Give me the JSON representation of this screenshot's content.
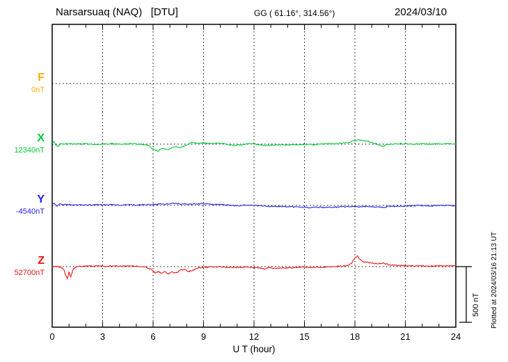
{
  "header": {
    "station": "Narsarsuaq (NAQ)   [DTU]",
    "coords": "GG ( 61.16°, 314.56°)",
    "date": "2024/03/10"
  },
  "footer": {
    "xlabel": "U T (hour)"
  },
  "side": {
    "scale_label": "500 nT",
    "plotted_note": "Plotted at 2024/03/16 21:13 UT"
  },
  "chart_data": {
    "type": "line",
    "title": "Narsarsuaq (NAQ) [DTU] magnetogram, 2024/03/10",
    "xlabel": "U T (hour)",
    "x_range": [
      0,
      24
    ],
    "x_ticks": [
      0,
      3,
      6,
      9,
      12,
      15,
      18,
      21,
      24
    ],
    "grid": "dotted vertical lines every 3 h; dotted horizontal baseline per component",
    "legend_position": "left margin, one label per trace baseline",
    "scale_bar": {
      "label": "500 nT",
      "nT": 500
    },
    "series": [
      {
        "name": "F",
        "color": "#ffaa00",
        "baseline_label": "0nT",
        "baseline_value_nT": 0,
        "points": []
      },
      {
        "name": "X",
        "color": "#00cc33",
        "baseline_label": "12340nT",
        "baseline_value_nT": 12340,
        "points": [
          [
            0,
            6
          ],
          [
            0.1,
            25
          ],
          [
            0.2,
            -6
          ],
          [
            0.35,
            -25
          ],
          [
            0.5,
            6
          ],
          [
            0.7,
            0
          ],
          [
            1,
            3
          ],
          [
            1.5,
            0
          ],
          [
            2,
            3
          ],
          [
            2.5,
            -3
          ],
          [
            3,
            0
          ],
          [
            3.5,
            3
          ],
          [
            4,
            0
          ],
          [
            4.5,
            3
          ],
          [
            5,
            0
          ],
          [
            5.4,
            -3
          ],
          [
            5.7,
            -12
          ],
          [
            6,
            -44
          ],
          [
            6.15,
            -56
          ],
          [
            6.3,
            -62
          ],
          [
            6.5,
            -37
          ],
          [
            6.7,
            -44
          ],
          [
            6.9,
            -50
          ],
          [
            7.1,
            -31
          ],
          [
            7.35,
            -22
          ],
          [
            7.6,
            -31
          ],
          [
            7.8,
            -19
          ],
          [
            8,
            -6
          ],
          [
            8.3,
            12
          ],
          [
            8.6,
            9
          ],
          [
            9,
            9
          ],
          [
            9.4,
            6
          ],
          [
            9.8,
            9
          ],
          [
            10.2,
            3
          ],
          [
            10.5,
            -9
          ],
          [
            10.8,
            -12
          ],
          [
            11.1,
            -6
          ],
          [
            11.5,
            0
          ],
          [
            12,
            3
          ],
          [
            12.3,
            -6
          ],
          [
            12.6,
            -12
          ],
          [
            13,
            -9
          ],
          [
            13.5,
            -6
          ],
          [
            14,
            -8
          ],
          [
            14.5,
            -5
          ],
          [
            15,
            -3
          ],
          [
            15.5,
            -5
          ],
          [
            16,
            0
          ],
          [
            16.5,
            3
          ],
          [
            17,
            5
          ],
          [
            17.5,
            12
          ],
          [
            17.8,
            22
          ],
          [
            18,
            31
          ],
          [
            18.2,
            37
          ],
          [
            18.5,
            31
          ],
          [
            18.8,
            25
          ],
          [
            19,
            15
          ],
          [
            19.3,
            0
          ],
          [
            19.6,
            -19
          ],
          [
            19.9,
            -8
          ],
          [
            20.2,
            0
          ],
          [
            20.6,
            3
          ],
          [
            21,
            2
          ],
          [
            21.5,
            0
          ],
          [
            22,
            3
          ],
          [
            22.5,
            1
          ],
          [
            23,
            3
          ],
          [
            23.5,
            2
          ],
          [
            24,
            3
          ]
        ]
      },
      {
        "name": "Y",
        "color": "#2222ee",
        "baseline_label": "-4540nT",
        "baseline_value_nT": -4540,
        "points": [
          [
            0,
            25
          ],
          [
            0.15,
            12
          ],
          [
            0.3,
            -9
          ],
          [
            0.45,
            19
          ],
          [
            0.6,
            3
          ],
          [
            0.8,
            9
          ],
          [
            1,
            6
          ],
          [
            1.3,
            3
          ],
          [
            1.6,
            6
          ],
          [
            2,
            4
          ],
          [
            2.5,
            6
          ],
          [
            3,
            4
          ],
          [
            3.5,
            6
          ],
          [
            4,
            4
          ],
          [
            4.5,
            5
          ],
          [
            5,
            4
          ],
          [
            5.5,
            6
          ],
          [
            6,
            8
          ],
          [
            6.4,
            12
          ],
          [
            6.8,
            10
          ],
          [
            7.1,
            19
          ],
          [
            7.4,
            14
          ],
          [
            7.7,
            12
          ],
          [
            8,
            10
          ],
          [
            8.4,
            12
          ],
          [
            8.8,
            14
          ],
          [
            9.2,
            12
          ],
          [
            9.6,
            8
          ],
          [
            10,
            6
          ],
          [
            10.5,
            4
          ],
          [
            11,
            -2
          ],
          [
            11.4,
            2
          ],
          [
            11.8,
            0
          ],
          [
            12.2,
            -2
          ],
          [
            12.6,
            -4
          ],
          [
            13,
            -8
          ],
          [
            13.5,
            -10
          ],
          [
            14,
            -12
          ],
          [
            14.5,
            -15
          ],
          [
            15,
            -17
          ],
          [
            15.5,
            -19
          ],
          [
            16,
            -17
          ],
          [
            16.5,
            -19
          ],
          [
            17,
            -14
          ],
          [
            17.4,
            -12
          ],
          [
            17.8,
            -10
          ],
          [
            18.2,
            -12
          ],
          [
            18.6,
            -10
          ],
          [
            19,
            -12
          ],
          [
            19.4,
            -17
          ],
          [
            19.7,
            -19
          ],
          [
            20,
            -10
          ],
          [
            20.4,
            -8
          ],
          [
            20.8,
            -6
          ],
          [
            21.2,
            -4
          ],
          [
            21.6,
            -3
          ],
          [
            22,
            -2
          ],
          [
            22.5,
            -3
          ],
          [
            23,
            -1
          ],
          [
            23.5,
            -2
          ],
          [
            24,
            0
          ]
        ]
      },
      {
        "name": "Z",
        "color": "#ee1111",
        "baseline_label": "52700nT",
        "baseline_value_nT": 52700,
        "points": [
          [
            0,
            0
          ],
          [
            0.3,
            2
          ],
          [
            0.5,
            -2
          ],
          [
            0.7,
            -30
          ],
          [
            0.8,
            -75
          ],
          [
            0.9,
            -106
          ],
          [
            1,
            -50
          ],
          [
            1.1,
            -87
          ],
          [
            1.25,
            -25
          ],
          [
            1.4,
            -6
          ],
          [
            1.6,
            2
          ],
          [
            2,
            5
          ],
          [
            2.5,
            6
          ],
          [
            3,
            5
          ],
          [
            3.5,
            6
          ],
          [
            4,
            4
          ],
          [
            4.5,
            6
          ],
          [
            5,
            5
          ],
          [
            5.3,
            2
          ],
          [
            5.6,
            -6
          ],
          [
            5.9,
            -25
          ],
          [
            6.1,
            -56
          ],
          [
            6.3,
            -44
          ],
          [
            6.5,
            -62
          ],
          [
            6.7,
            -44
          ],
          [
            6.9,
            -69
          ],
          [
            7.1,
            -50
          ],
          [
            7.4,
            -56
          ],
          [
            7.6,
            -31
          ],
          [
            7.9,
            -25
          ],
          [
            8.1,
            -44
          ],
          [
            8.4,
            -31
          ],
          [
            8.7,
            -12
          ],
          [
            9,
            -6
          ],
          [
            9.5,
            -4
          ],
          [
            10,
            -2
          ],
          [
            10.5,
            -6
          ],
          [
            11,
            -8
          ],
          [
            11.5,
            -5
          ],
          [
            12,
            -8
          ],
          [
            12.3,
            -12
          ],
          [
            12.6,
            -19
          ],
          [
            13,
            -10
          ],
          [
            13.4,
            -15
          ],
          [
            13.8,
            -12
          ],
          [
            14.2,
            -10
          ],
          [
            14.6,
            -8
          ],
          [
            15,
            -5
          ],
          [
            15.5,
            -8
          ],
          [
            16,
            -4
          ],
          [
            16.5,
            -2
          ],
          [
            17,
            3
          ],
          [
            17.5,
            8
          ],
          [
            17.8,
            30
          ],
          [
            18,
            75
          ],
          [
            18.15,
            94
          ],
          [
            18.3,
            62
          ],
          [
            18.5,
            44
          ],
          [
            18.8,
            37
          ],
          [
            19,
            31
          ],
          [
            19.3,
            25
          ],
          [
            19.5,
            28
          ],
          [
            19.7,
            31
          ],
          [
            20,
            19
          ],
          [
            20.4,
            12
          ],
          [
            20.8,
            10
          ],
          [
            21.2,
            8
          ],
          [
            21.6,
            6
          ],
          [
            22,
            8
          ],
          [
            22.5,
            5
          ],
          [
            23,
            8
          ],
          [
            23.5,
            5
          ],
          [
            24,
            6
          ]
        ]
      }
    ]
  }
}
